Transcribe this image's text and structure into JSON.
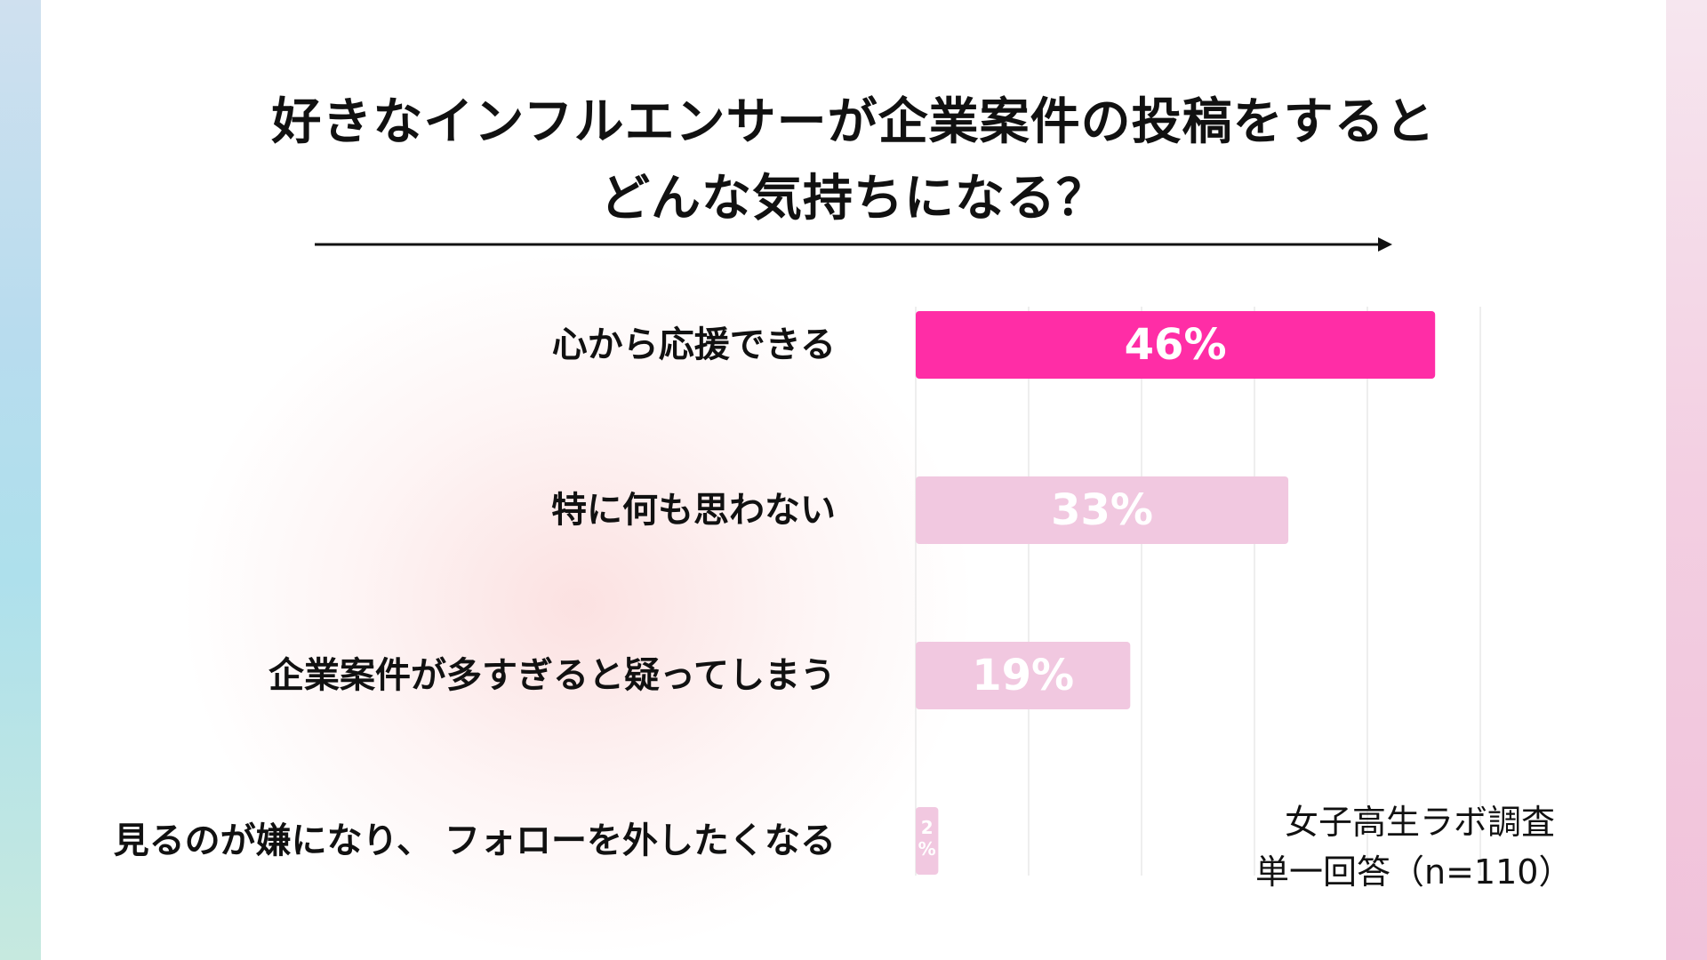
{
  "title": {
    "line1": "好きなインフルエンサーが企業案件の投稿をすると",
    "line2": "どんな気持ちになる？"
  },
  "note": {
    "line1": "女子高生ラボ調査",
    "line2": "単一回答（n=110）"
  },
  "colors": {
    "highlight": "#ff2da6",
    "muted": "#f1c8e0",
    "grid": "#e8e8e8"
  },
  "chart_data": {
    "type": "bar",
    "orientation": "horizontal",
    "categories": [
      "心から応援できる",
      "特に何も思わない",
      "企業案件が多すぎると疑ってしまう",
      "見るのが嫌になり、 フォローを外したくなる"
    ],
    "values": [
      46,
      33,
      19,
      2
    ],
    "value_labels": [
      "46%",
      "33%",
      "19%",
      "2%"
    ],
    "xlim": [
      0,
      50
    ],
    "grid": true,
    "highlight_index": 0
  }
}
